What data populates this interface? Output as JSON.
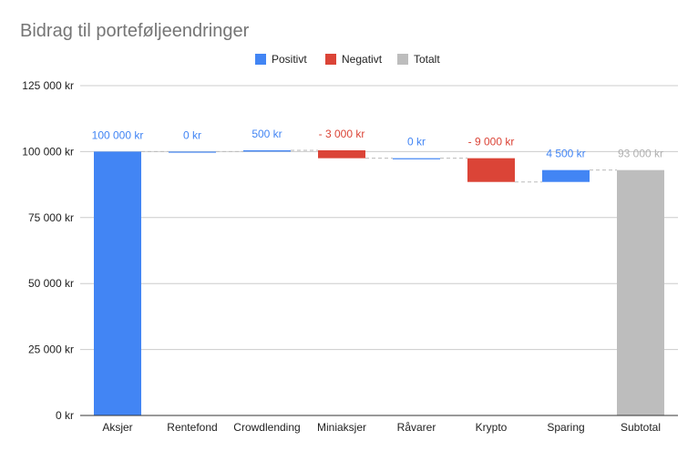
{
  "colors": {
    "positive": "#4285f4",
    "negative": "#db4437",
    "total": "#bdbdbd",
    "total_label": "#b0b0b0"
  },
  "chart_data": {
    "type": "waterfall",
    "title": "Bidrag til porteføljeendringer",
    "xlabel": "",
    "ylabel": "",
    "ylim": [
      0,
      125000
    ],
    "yticks": [
      0,
      25000,
      50000,
      75000,
      100000,
      125000
    ],
    "ytick_labels": [
      "0 kr",
      "25 000 kr",
      "50 000 kr",
      "75 000 kr",
      "100 000 kr",
      "125 000 kr"
    ],
    "grid": true,
    "legend_position": "top",
    "legend": [
      {
        "key": "positive",
        "label": "Positivt"
      },
      {
        "key": "negative",
        "label": "Negativt"
      },
      {
        "key": "total",
        "label": "Totalt"
      }
    ],
    "categories": [
      "Aksjer",
      "Rentefond",
      "Crowdlending",
      "Miniaksjer",
      "Råvarer",
      "Krypto",
      "Sparing",
      "Subtotal"
    ],
    "values": [
      100000,
      0,
      500,
      -3000,
      0,
      -9000,
      4500,
      93000
    ],
    "kinds": [
      "positive",
      "positive",
      "positive",
      "negative",
      "positive",
      "negative",
      "positive",
      "total"
    ],
    "value_labels": [
      "100 000 kr",
      "0 kr",
      "500 kr",
      "- 3 000 kr",
      "0 kr",
      "- 9 000 kr",
      "4 500 kr",
      "93 000 kr"
    ]
  }
}
